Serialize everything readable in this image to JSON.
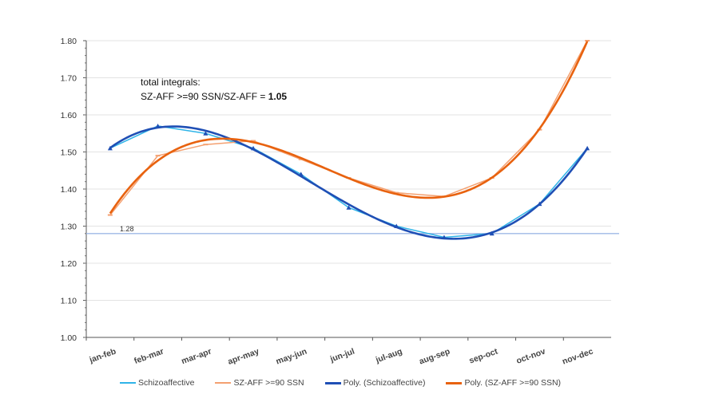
{
  "chart_data": {
    "type": "line",
    "title": "",
    "xlabel": "",
    "ylabel": "",
    "ylim": [
      1.0,
      1.8
    ],
    "yticks": [
      "1.00",
      "1.10",
      "1.20",
      "1.30",
      "1.40",
      "1.50",
      "1.60",
      "1.70",
      "1.80"
    ],
    "grid": true,
    "categories": [
      "jan-feb",
      "feb-mar",
      "mar-apr",
      "apr-may",
      "may-jun",
      "jun-jul",
      "jul-aug",
      "aug-sep",
      "sep-oct",
      "oct-nov",
      "nov-dec"
    ],
    "series": [
      {
        "name": "Schizoaffective",
        "color": "#2fb4e8",
        "marker": "triangle",
        "values": [
          1.51,
          1.57,
          1.55,
          1.51,
          1.44,
          1.35,
          1.3,
          1.27,
          1.28,
          1.36,
          1.51
        ]
      },
      {
        "name": "SZ-AFF >=90 SSN",
        "color": "#f4a070",
        "marker": "dash",
        "values": [
          1.33,
          1.49,
          1.52,
          1.53,
          1.48,
          1.43,
          1.39,
          1.38,
          1.43,
          1.56,
          1.8
        ]
      }
    ],
    "trendlines": [
      {
        "name": "Poly. (Schizoaffective)",
        "of": 0,
        "color": "#1f4fb5"
      },
      {
        "name": "Poly. (SZ-AFF >=90 SSN)",
        "of": 1,
        "color": "#e8620f"
      }
    ],
    "reference_line": {
      "value": 1.28,
      "label": "1.28",
      "color": "#9fb8e6"
    },
    "annotation": {
      "line1": "total integrals:",
      "line2_prefix": "SZ-AFF >=90 SSN/SZ-AFF = ",
      "line2_value": "1.05"
    },
    "legend_position": "bottom"
  }
}
